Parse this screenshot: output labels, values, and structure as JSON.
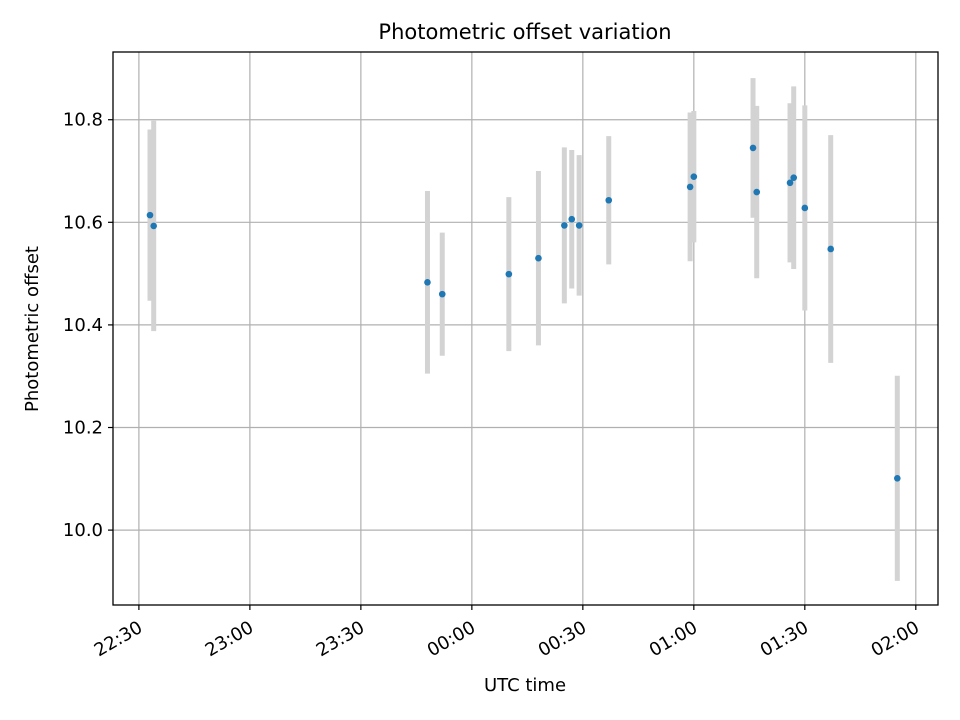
{
  "chart_data": {
    "type": "scatter",
    "title": "Photometric offset variation",
    "xlabel": "UTC time",
    "ylabel": "Photometric offset",
    "grid": true,
    "x_axis_kind": "time",
    "xlim": [
      "22:23",
      "02:06"
    ],
    "ylim": [
      9.854,
      10.932
    ],
    "xticks": [
      "22:30",
      "23:00",
      "23:30",
      "00:00",
      "00:30",
      "01:00",
      "01:30",
      "02:00"
    ],
    "yticks": [
      10.0,
      10.2,
      10.4,
      10.6,
      10.8
    ],
    "ytick_labels": [
      "10.0",
      "10.2",
      "10.4",
      "10.6",
      "10.8"
    ],
    "point_color": "#1f77b4",
    "errorbar_color": "#d3d3d3",
    "points": [
      {
        "x": "22:33",
        "y": 10.614,
        "err": 0.167
      },
      {
        "x": "22:34",
        "y": 10.593,
        "err": 0.205
      },
      {
        "x": "23:48",
        "y": 10.483,
        "err": 0.178
      },
      {
        "x": "23:52",
        "y": 10.46,
        "err": 0.12
      },
      {
        "x": "00:10",
        "y": 10.499,
        "err": 0.15
      },
      {
        "x": "00:18",
        "y": 10.53,
        "err": 0.17
      },
      {
        "x": "00:25",
        "y": 10.594,
        "err": 0.152
      },
      {
        "x": "00:27",
        "y": 10.606,
        "err": 0.135
      },
      {
        "x": "00:29",
        "y": 10.594,
        "err": 0.137
      },
      {
        "x": "00:37",
        "y": 10.643,
        "err": 0.125
      },
      {
        "x": "00:59",
        "y": 10.669,
        "err": 0.145
      },
      {
        "x": "01:00",
        "y": 10.689,
        "err": 0.128
      },
      {
        "x": "01:16",
        "y": 10.745,
        "err": 0.136
      },
      {
        "x": "01:17",
        "y": 10.659,
        "err": 0.168
      },
      {
        "x": "01:26",
        "y": 10.677,
        "err": 0.155
      },
      {
        "x": "01:27",
        "y": 10.687,
        "err": 0.178
      },
      {
        "x": "01:30",
        "y": 10.628,
        "err": 0.2
      },
      {
        "x": "01:37",
        "y": 10.548,
        "err": 0.222
      },
      {
        "x": "01:55",
        "y": 10.101,
        "err": 0.2
      }
    ]
  }
}
